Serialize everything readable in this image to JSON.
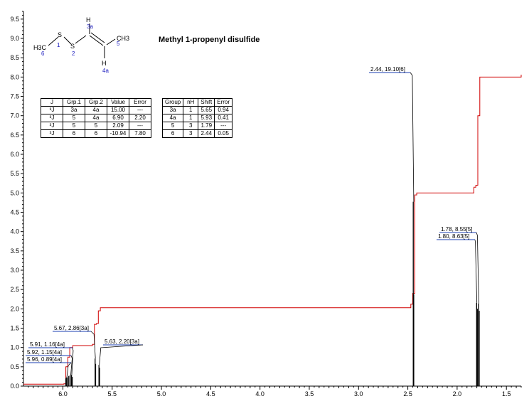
{
  "chart_data": {
    "type": "line",
    "title": "Methyl 1-propenyl disulfide",
    "xlabel": "",
    "ylabel": "",
    "xlim": [
      6.4,
      1.35
    ],
    "ylim": [
      0,
      9.7
    ],
    "x_ticks": [
      "6.0",
      "5.5",
      "5.0",
      "4.5",
      "4.0",
      "3.5",
      "3.0",
      "2.5",
      "2.0",
      "1.5"
    ],
    "y_ticks": [
      "0.0",
      "0.5",
      "1.0",
      "1.5",
      "2.0",
      "2.5",
      "3.0",
      "3.5",
      "4.0",
      "4.5",
      "5.0",
      "5.5",
      "6.0",
      "6.5",
      "7.0",
      "7.5",
      "8.0",
      "8.5",
      "9.0",
      "9.5"
    ],
    "peaks": [
      {
        "label": "5.96, 0.89[4a]",
        "shift": 5.96,
        "height": 0.89
      },
      {
        "label": "5.92, 1.15[4a]",
        "shift": 5.92,
        "height": 1.15
      },
      {
        "label": "5.91, 1.16[4a]",
        "shift": 5.91,
        "height": 1.16
      },
      {
        "label": "5.67, 2.86[3a]",
        "shift": 5.67,
        "height": 2.86
      },
      {
        "label": "5.63, 2.20[3a]",
        "shift": 5.63,
        "height": 2.2
      },
      {
        "label": "2.44, 19.10[6]",
        "shift": 2.44,
        "height": 19.1
      },
      {
        "label": "1.80, 8.63[5]",
        "shift": 1.8,
        "height": 8.63
      },
      {
        "label": "1.78, 8.55[5]",
        "shift": 1.78,
        "height": 8.55
      }
    ],
    "integral": {
      "x": [
        6.4,
        5.99,
        5.97,
        5.95,
        5.93,
        5.9,
        5.7,
        5.68,
        5.66,
        5.64,
        5.62,
        2.47,
        2.45,
        2.43,
        2.41,
        1.83,
        1.81,
        1.79,
        1.77,
        1.35
      ],
      "y": [
        0.05,
        0.06,
        0.5,
        0.75,
        1.0,
        1.05,
        1.08,
        1.6,
        1.62,
        1.95,
        2.03,
        2.12,
        2.4,
        4.95,
        5.0,
        5.15,
        5.2,
        7.0,
        8.0,
        8.06
      ]
    },
    "series": [
      {
        "name": "",
        "values": []
      }
    ]
  },
  "molecule": {
    "atoms": [
      "H",
      "3a",
      "H3C",
      "6",
      "S",
      "1",
      "S",
      "2",
      "CH3",
      "5",
      "H",
      "4a"
    ]
  },
  "j_table": {
    "headers": [
      "J",
      "Grp.1",
      "Grp.2",
      "Value",
      "Error"
    ],
    "rows": [
      [
        "³J",
        "3a",
        "4a",
        "15.00",
        "---"
      ],
      [
        "³J",
        "5",
        "4a",
        "6.90",
        "2.20"
      ],
      [
        "³J",
        "5",
        "5",
        "2.09",
        "---"
      ],
      [
        "³J",
        "6",
        "6",
        "-10.94",
        "7.80"
      ]
    ]
  },
  "group_table": {
    "headers": [
      "Group",
      "nH",
      "Shift",
      "Error"
    ],
    "rows": [
      [
        "3a",
        "1",
        "5.65",
        "0.94"
      ],
      [
        "4a",
        "1",
        "5.93",
        "0.41"
      ],
      [
        "5",
        "3",
        "1.79",
        "---"
      ],
      [
        "6",
        "3",
        "2.44",
        "0.05"
      ]
    ]
  },
  "colors": {
    "spectrum": "#000000",
    "integral": "#d00000",
    "label_underline": "#1a3cb0",
    "atom_numbers": "#2020c0"
  }
}
